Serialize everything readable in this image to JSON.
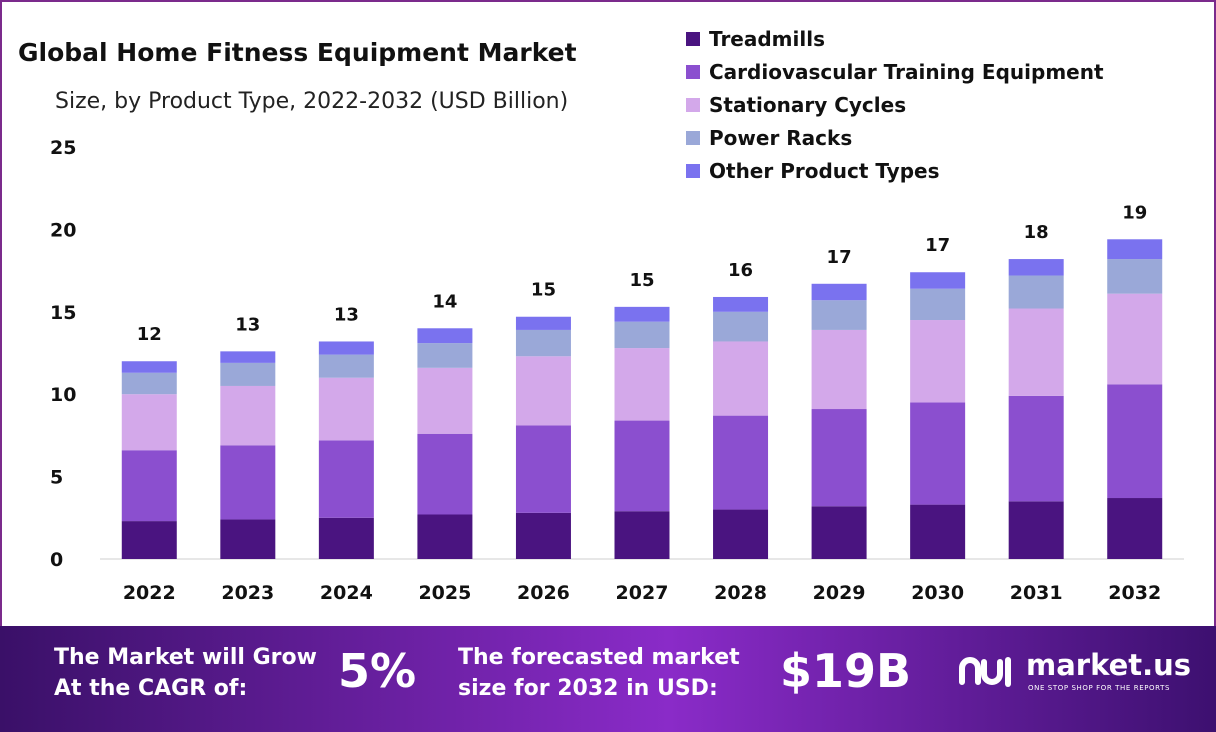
{
  "chart_data": {
    "type": "bar",
    "stacked": true,
    "title": "Global Home Fitness Equipment Market",
    "subtitle": "Size, by Product Type, 2022-2032 (USD Billion)",
    "categories": [
      "2022",
      "2023",
      "2024",
      "2025",
      "2026",
      "2027",
      "2028",
      "2029",
      "2030",
      "2031",
      "2032"
    ],
    "totals_labels": [
      "12",
      "13",
      "13",
      "14",
      "15",
      "15",
      "16",
      "17",
      "17",
      "18",
      "19"
    ],
    "series": [
      {
        "name": "Treadmills",
        "color": "#4a1480",
        "values": [
          2.3,
          2.4,
          2.5,
          2.7,
          2.8,
          2.9,
          3.0,
          3.2,
          3.3,
          3.5,
          3.7
        ]
      },
      {
        "name": "Cardiovascular Training Equipment",
        "color": "#8b4fcf",
        "values": [
          4.3,
          4.5,
          4.7,
          4.9,
          5.3,
          5.5,
          5.7,
          5.9,
          6.2,
          6.4,
          6.9
        ]
      },
      {
        "name": "Stationary Cycles",
        "color": "#d3a8ea",
        "values": [
          3.4,
          3.6,
          3.8,
          4.0,
          4.2,
          4.4,
          4.5,
          4.8,
          5.0,
          5.3,
          5.5
        ]
      },
      {
        "name": "Power Racks",
        "color": "#9aa8d8",
        "values": [
          1.3,
          1.4,
          1.4,
          1.5,
          1.6,
          1.6,
          1.8,
          1.8,
          1.9,
          2.0,
          2.1
        ]
      },
      {
        "name": "Other Product Types",
        "color": "#7a72ef",
        "values": [
          0.7,
          0.7,
          0.8,
          0.9,
          0.8,
          0.9,
          0.9,
          1.0,
          1.0,
          1.0,
          1.2
        ]
      }
    ],
    "yticks": [
      0,
      5,
      10,
      15,
      20,
      25
    ],
    "ylim": [
      0,
      25
    ],
    "xlabel": "",
    "ylabel": "",
    "grid": false,
    "legend_position": "top-right"
  },
  "footer": {
    "cagr_text": "The Market will Grow\nAt the CAGR of:",
    "cagr_value": "5%",
    "forecast_text": "The forecasted market\nsize for 2032 in USD:",
    "forecast_value": "$19B",
    "brand_name": "market.us",
    "brand_tagline": "ONE STOP SHOP FOR THE REPORTS"
  }
}
